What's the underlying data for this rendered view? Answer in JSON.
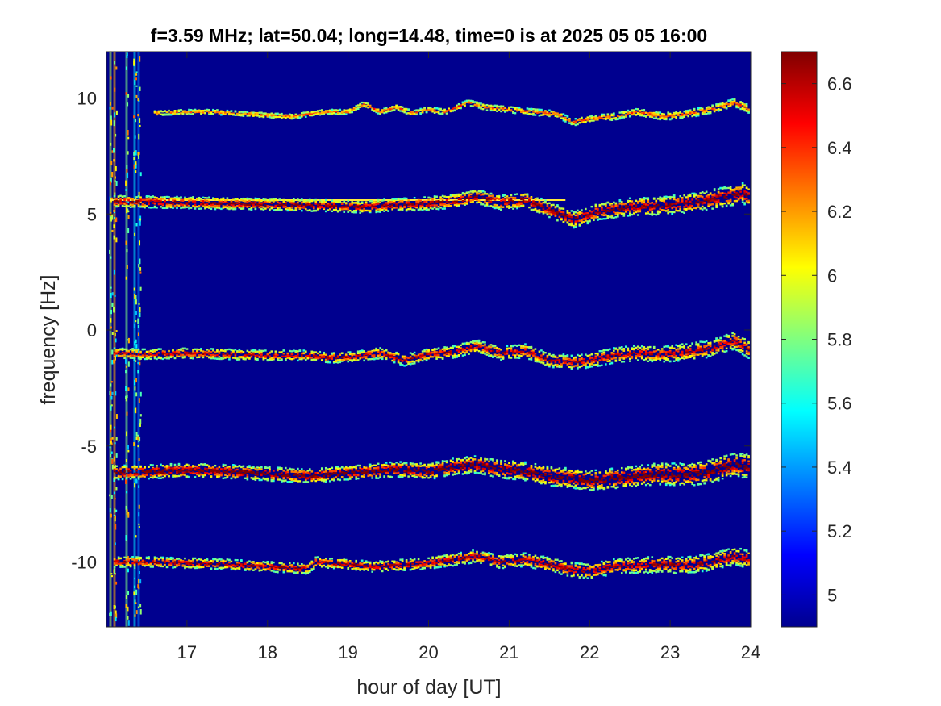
{
  "chart_data": {
    "type": "heatmap",
    "title": "f=3.59 MHz;  lat=50.04; long=14.48, time=0 is at 2025 05 05 16:00",
    "xlabel": "hour of day [UT]",
    "ylabel": "frequency [Hz]",
    "xlim": [
      16.0,
      24.0
    ],
    "ylim": [
      -12.8,
      12.0
    ],
    "xticks": [
      "17",
      "18",
      "19",
      "20",
      "21",
      "22",
      "23",
      "24"
    ],
    "xtick_values": [
      17,
      18,
      19,
      20,
      21,
      22,
      23,
      24
    ],
    "yticks": [
      "10",
      "5",
      "0",
      "-5",
      "-10"
    ],
    "ytick_values": [
      10,
      5,
      0,
      -5,
      -10
    ],
    "colormap": "jet",
    "background_color": "#00008f",
    "colorbar": {
      "range": [
        4.9,
        6.7
      ],
      "ticks": [
        "6.6",
        "6.4",
        "6.2",
        "6",
        "5.8",
        "5.6",
        "5.4",
        "5.2",
        "5"
      ],
      "tick_values": [
        6.6,
        6.4,
        6.2,
        6.0,
        5.8,
        5.6,
        5.4,
        5.2,
        5.0
      ]
    },
    "steady_line": {
      "frequency": 5.6,
      "x_range": [
        16.05,
        21.7
      ],
      "color": "#ffeb3b"
    },
    "series": [
      {
        "x": [
          16.6,
          17.0,
          17.3,
          17.8,
          18.3,
          18.7,
          19.0,
          19.2,
          19.4,
          19.6,
          19.8,
          20.0,
          20.2,
          20.5,
          20.7,
          21.0,
          21.3,
          21.6,
          21.8,
          22.0,
          22.3,
          22.6,
          22.9,
          23.2,
          23.5,
          23.8,
          24.0
        ],
        "y": [
          9.35,
          9.4,
          9.4,
          9.3,
          9.2,
          9.4,
          9.4,
          9.75,
          9.4,
          9.6,
          9.35,
          9.5,
          9.4,
          9.8,
          9.6,
          9.5,
          9.4,
          9.3,
          8.95,
          9.1,
          9.2,
          9.4,
          9.2,
          9.3,
          9.5,
          9.8,
          9.5
        ],
        "intensity": 0.55,
        "spread": 0.1
      },
      {
        "x": [
          16.1,
          16.8,
          17.5,
          18.2,
          18.8,
          19.2,
          19.6,
          20.0,
          20.4,
          20.6,
          20.9,
          21.2,
          21.5,
          21.8,
          22.1,
          22.5,
          22.9,
          23.3,
          23.7,
          23.9,
          24.0
        ],
        "y": [
          5.55,
          5.5,
          5.45,
          5.4,
          5.35,
          5.3,
          5.4,
          5.45,
          5.6,
          5.75,
          5.5,
          5.6,
          5.2,
          4.75,
          5.1,
          5.3,
          5.35,
          5.5,
          5.75,
          5.9,
          5.7
        ],
        "intensity": 0.85,
        "spread": 0.25
      },
      {
        "x": [
          16.1,
          16.5,
          17.0,
          17.5,
          18.0,
          18.5,
          18.8,
          19.1,
          19.4,
          19.7,
          20.0,
          20.3,
          20.6,
          20.9,
          21.2,
          21.5,
          21.8,
          22.0,
          22.3,
          22.6,
          22.9,
          23.2,
          23.5,
          23.8,
          24.0
        ],
        "y": [
          -1.0,
          -1.05,
          -1.0,
          -1.05,
          -1.1,
          -1.1,
          -1.2,
          -1.15,
          -1.0,
          -1.3,
          -1.05,
          -0.95,
          -0.7,
          -1.0,
          -0.9,
          -1.3,
          -1.4,
          -1.3,
          -1.1,
          -1.0,
          -1.05,
          -0.95,
          -0.8,
          -0.45,
          -0.9
        ],
        "intensity": 0.75,
        "spread": 0.22
      },
      {
        "x": [
          16.1,
          16.6,
          17.0,
          17.5,
          18.0,
          18.5,
          18.7,
          19.0,
          19.3,
          19.6,
          20.0,
          20.3,
          20.6,
          20.9,
          21.2,
          21.5,
          21.8,
          22.0,
          22.3,
          22.6,
          22.9,
          23.2,
          23.5,
          23.8,
          24.0
        ],
        "y": [
          -6.15,
          -6.1,
          -6.05,
          -6.1,
          -6.2,
          -6.3,
          -6.25,
          -6.15,
          -6.1,
          -6.0,
          -6.1,
          -5.9,
          -5.8,
          -6.0,
          -6.1,
          -6.3,
          -6.4,
          -6.5,
          -6.4,
          -6.3,
          -6.2,
          -6.25,
          -6.1,
          -5.8,
          -5.9
        ],
        "intensity": 0.95,
        "spread": 0.3
      },
      {
        "x": [
          16.1,
          16.5,
          17.0,
          17.5,
          18.0,
          18.5,
          18.6,
          19.0,
          19.3,
          19.6,
          20.0,
          20.3,
          20.6,
          20.9,
          21.2,
          21.5,
          21.8,
          22.0,
          22.3,
          22.6,
          22.9,
          23.2,
          23.5,
          23.8,
          24.0
        ],
        "y": [
          -10.0,
          -10.0,
          -10.05,
          -10.1,
          -10.2,
          -10.3,
          -10.0,
          -10.1,
          -10.2,
          -10.15,
          -10.05,
          -9.9,
          -9.75,
          -10.0,
          -9.9,
          -10.1,
          -10.35,
          -10.4,
          -10.2,
          -10.15,
          -10.1,
          -10.15,
          -10.0,
          -9.75,
          -9.9
        ],
        "intensity": 0.8,
        "spread": 0.22
      }
    ]
  }
}
